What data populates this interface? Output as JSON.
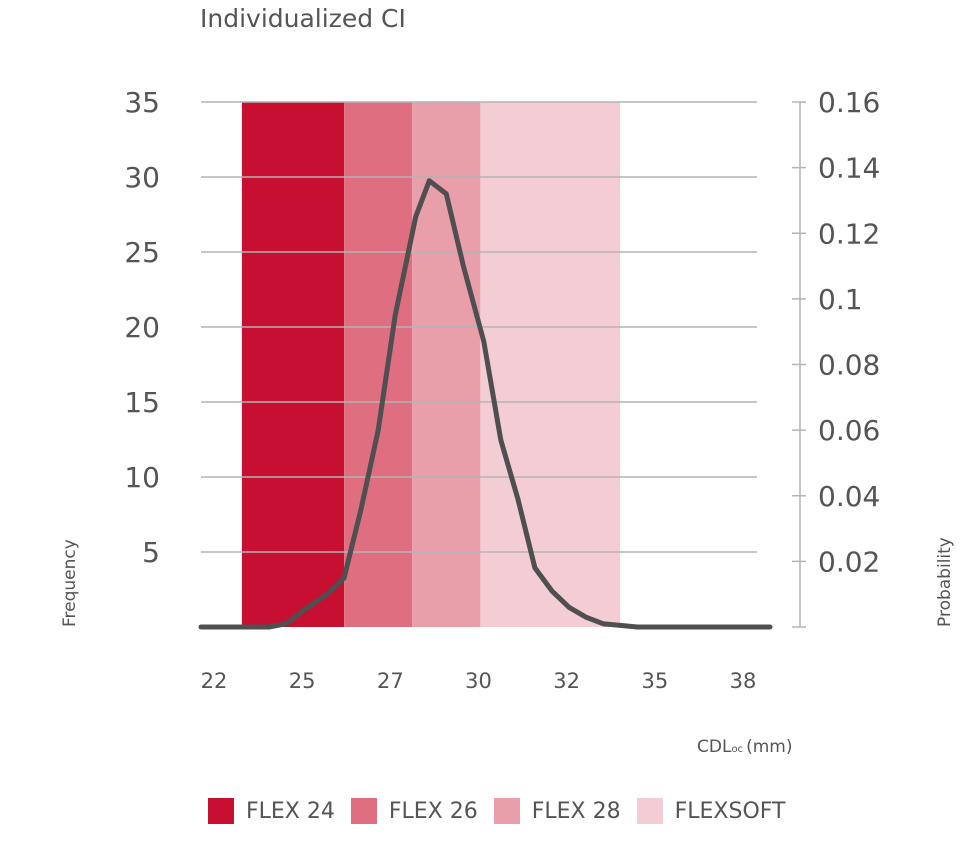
{
  "chart_data": {
    "type": "line",
    "title": "Individualized CI",
    "xlabel_main": "CDL",
    "xlabel_sub": "oc",
    "xlabel_unit": "(mm)",
    "ylabel_left": "Frequency",
    "ylabel_right": "Probability",
    "x_ticks": [
      "22",
      "25",
      "27",
      "30",
      "32",
      "35",
      "38"
    ],
    "y_left_ticks": [
      "5",
      "10",
      "15",
      "20",
      "25",
      "30",
      "35"
    ],
    "y_right_ticks": [
      "0.02",
      "0.04",
      "0.06",
      "0.08",
      "0.1",
      "0.12",
      "0.14",
      "0.16"
    ],
    "y_left_range": [
      0,
      35
    ],
    "y_right_range": [
      0,
      0.16
    ],
    "bands": [
      {
        "name": "FLEX 24",
        "x_start": 23.2,
        "x_end": 26.2,
        "color": "#c70f31"
      },
      {
        "name": "FLEX 26",
        "x_start": 26.2,
        "x_end": 28.2,
        "color": "#de6e80"
      },
      {
        "name": "FLEX 28",
        "x_start": 28.2,
        "x_end": 30.2,
        "color": "#e99faa"
      },
      {
        "name": "FLEXSOFT",
        "x_start": 30.2,
        "x_end": 34.3,
        "color": "#f3ccd4"
      }
    ],
    "series": [
      {
        "line_color": "#4f4f4f",
        "x": [
          22,
          24,
          24.5,
          25,
          25.7,
          26.2,
          26.7,
          27.2,
          27.7,
          28.3,
          28.7,
          29.2,
          29.7,
          30.3,
          30.8,
          31.3,
          31.8,
          32.3,
          32.8,
          33.3,
          33.8,
          34.3,
          34.8,
          36,
          38.7
        ],
        "y": [
          0,
          0,
          0.001,
          0.005,
          0.01,
          0.015,
          0.036,
          0.06,
          0.095,
          0.125,
          0.136,
          0.132,
          0.11,
          0.087,
          0.057,
          0.039,
          0.018,
          0.011,
          0.006,
          0.003,
          0.001,
          0.0005,
          0,
          0,
          0
        ]
      }
    ]
  },
  "legend": [
    {
      "label": "FLEX 24",
      "color": "#c70f31"
    },
    {
      "label": "FLEX 26",
      "color": "#de6e80"
    },
    {
      "label": "FLEX 28",
      "color": "#e99faa"
    },
    {
      "label": "FLEXSOFT",
      "color": "#f3ccd4"
    }
  ]
}
